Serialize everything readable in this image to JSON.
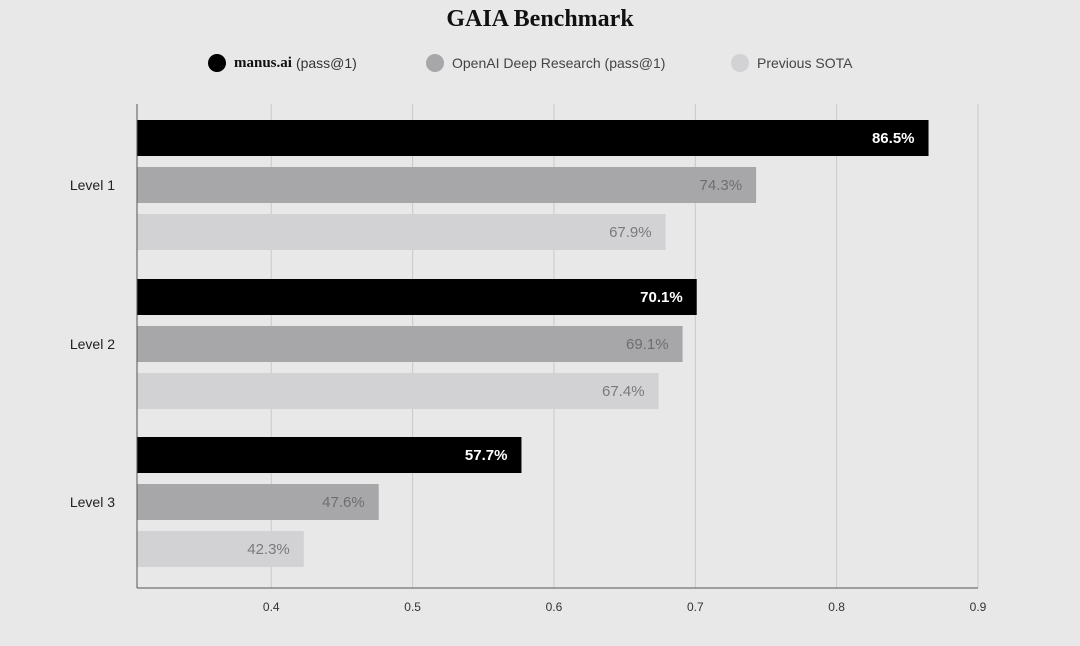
{
  "chart_data": {
    "type": "bar",
    "orientation": "horizontal",
    "title": "GAIA Benchmark",
    "categories": [
      "Level 1",
      "Level 2",
      "Level 3"
    ],
    "series": [
      {
        "name": "manus.ai (pass@1)",
        "name_strong": "manus.ai",
        "name_rest": "(pass@1)",
        "values": [
          0.865,
          0.701,
          0.577
        ],
        "value_labels": [
          "86.5%",
          "70.1%",
          "57.7%"
        ],
        "color": "#000000",
        "label_color": "#ffffff"
      },
      {
        "name": "OpenAI Deep Research (pass@1)",
        "values": [
          0.743,
          0.691,
          0.476
        ],
        "value_labels": [
          "74.3%",
          "69.1%",
          "47.6%"
        ],
        "color": "#a7a7aa",
        "label_color": "#6e6e70"
      },
      {
        "name": "Previous SOTA",
        "values": [
          0.679,
          0.674,
          0.423
        ],
        "value_labels": [
          "67.9%",
          "67.4%",
          "42.3%"
        ],
        "color": "#d2d2d5",
        "label_color": "#7a7a7c"
      }
    ],
    "xlim": [
      0.305,
      0.9
    ],
    "xticks": [
      0.4,
      0.5,
      0.6,
      0.7,
      0.8,
      0.9
    ],
    "xtick_labels": [
      "0.4",
      "0.5",
      "0.6",
      "0.7",
      "0.8",
      "0.9"
    ],
    "grid": true,
    "legend_position": "top-center"
  }
}
